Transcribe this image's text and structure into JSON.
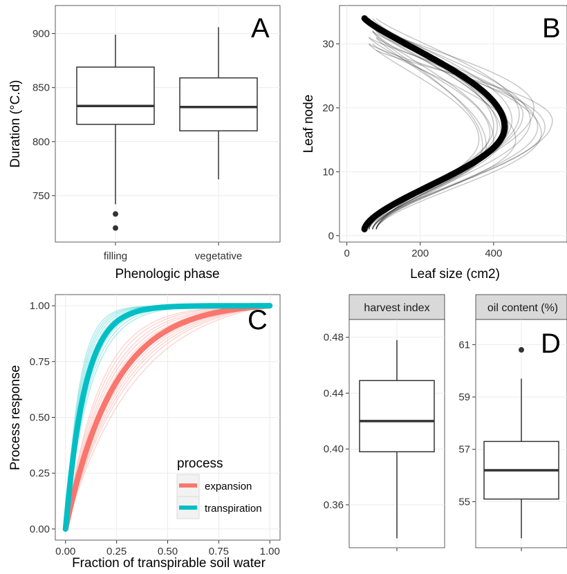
{
  "colors": {
    "expansion": "#F8766D",
    "transpiration": "#00BFC4",
    "strip_bg": "#d9d9d9",
    "grid": "#ebebeb"
  },
  "chart_data": [
    {
      "panel": "A",
      "type": "box",
      "xlabel": "Phenologic phase",
      "ylabel": "Duration (°C.d)",
      "ylim": [
        707,
        926
      ],
      "yticks": [
        750,
        800,
        850,
        900
      ],
      "categories": [
        "filling",
        "vegetative"
      ],
      "boxes": [
        {
          "label": "filling",
          "min": 742,
          "q1": 816,
          "median": 833,
          "q3": 869,
          "max": 899,
          "outliers": [
            733,
            720
          ]
        },
        {
          "label": "vegetative",
          "min": 765,
          "q1": 810,
          "median": 832,
          "q3": 859,
          "max": 906,
          "outliers": []
        }
      ]
    },
    {
      "panel": "B",
      "type": "line",
      "xlabel": "Leaf size (cm2)",
      "ylabel": "Leaf node",
      "xlim": [
        -20,
        600
      ],
      "ylim": [
        -1,
        36
      ],
      "xticks": [
        0,
        200,
        400
      ],
      "yticks": [
        0,
        10,
        20,
        30
      ],
      "mean_curve": {
        "top_node": 34,
        "peak_node": 17,
        "peak_size": 430,
        "base_size": 48
      },
      "individual_curves": [
        {
          "top": 31,
          "peak_node": 14,
          "peak": 380
        },
        {
          "top": 32,
          "peak_node": 15,
          "peak": 400
        },
        {
          "top": 33,
          "peak_node": 16,
          "peak": 420
        },
        {
          "top": 33,
          "peak_node": 17,
          "peak": 440
        },
        {
          "top": 34,
          "peak_node": 18,
          "peak": 450
        },
        {
          "top": 30,
          "peak_node": 15,
          "peak": 360
        },
        {
          "top": 31,
          "peak_node": 16,
          "peak": 390
        },
        {
          "top": 32,
          "peak_node": 17,
          "peak": 410
        },
        {
          "top": 34,
          "peak_node": 19,
          "peak": 470
        },
        {
          "top": 33,
          "peak_node": 18,
          "peak": 500
        },
        {
          "top": 32,
          "peak_node": 17,
          "peak": 520
        },
        {
          "top": 31,
          "peak_node": 16,
          "peak": 530
        },
        {
          "top": 30,
          "peak_node": 17,
          "peak": 540
        },
        {
          "top": 29,
          "peak_node": 18,
          "peak": 560
        },
        {
          "top": 33,
          "peak_node": 16,
          "peak": 430
        },
        {
          "top": 34,
          "peak_node": 17,
          "peak": 400
        },
        {
          "top": 32,
          "peak_node": 14,
          "peak": 370
        },
        {
          "top": 31,
          "peak_node": 19,
          "peak": 480
        },
        {
          "top": 30,
          "peak_node": 15,
          "peak": 460
        },
        {
          "top": 33,
          "peak_node": 20,
          "peak": 510
        }
      ]
    },
    {
      "panel": "C",
      "type": "line",
      "xlabel": "Fraction of transpirable soil water",
      "ylabel": "Process response",
      "xlim": [
        -0.05,
        1.05
      ],
      "ylim": [
        -0.05,
        1.05
      ],
      "xticks": [
        0,
        0.25,
        0.5,
        0.75,
        1
      ],
      "xticklabels": [
        "0.00",
        "0.25",
        "0.50",
        "0.75",
        "1.00"
      ],
      "yticks": [
        0,
        0.25,
        0.5,
        0.75,
        1
      ],
      "yticklabels": [
        "0.00",
        "0.25",
        "0.50",
        "0.75",
        "1.00"
      ],
      "legend": {
        "title": "process",
        "position": "bottom-right"
      },
      "series": [
        {
          "name": "expansion",
          "k_mean": 4.2,
          "k_individual": [
            2.9,
            3.2,
            3.4,
            3.6,
            3.8,
            4.0,
            4.3,
            4.6,
            4.9,
            5.2,
            5.6,
            6.0
          ]
        },
        {
          "name": "transpiration",
          "k_mean": 10.5,
          "k_individual": [
            8.2,
            8.8,
            9.4,
            10.0,
            11.0,
            11.6,
            12.4,
            13.2,
            14.0,
            15.0
          ]
        }
      ]
    },
    {
      "panel": "D",
      "type": "box",
      "facets": [
        {
          "strip": "harvest index",
          "ylim": [
            0.336,
            0.486
          ],
          "yticks": [
            0.36,
            0.4,
            0.44,
            0.48
          ],
          "yticklabels": [
            "0.36",
            "0.40",
            "0.44",
            "0.48"
          ],
          "min": 0.336,
          "q1": 0.398,
          "median": 0.42,
          "q3": 0.449,
          "max": 0.478,
          "outliers": []
        },
        {
          "strip": "oil content (%)",
          "ylim": [
            53.6,
            61.6
          ],
          "yticks": [
            55,
            57,
            59,
            61
          ],
          "yticklabels": [
            "55",
            "57",
            "59",
            "61"
          ],
          "min": 53.6,
          "q1": 55.1,
          "median": 56.2,
          "q3": 57.3,
          "max": 59.7,
          "outliers": [
            60.8
          ]
        }
      ]
    }
  ],
  "panel_letters": [
    "A",
    "B",
    "C",
    "D"
  ]
}
